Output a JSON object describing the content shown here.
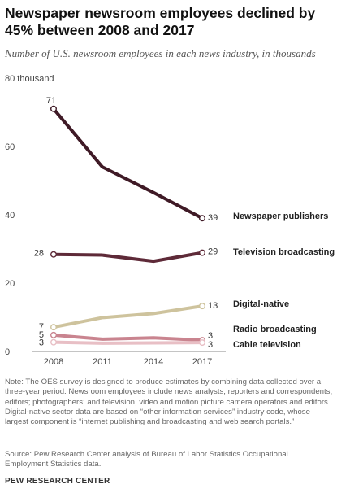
{
  "title": "Newspaper newsroom employees declined by 45% between 2008 and 2017",
  "subtitle": "Number of U.S. newsroom employees in each news industry, in thousands",
  "note": "Note: The OES survey is designed to produce estimates by combining data collected over a three-year period. Newsroom employees include news analysts, reporters and correspondents; editors; photographers; and television, video and motion picture camera operators and editors. Digital-native sector data are based on “other information services” industry code, whose largest component is “internet publishing and broadcasting and web search portals.”",
  "source": "Source: Pew Research Center analysis of Bureau of Labor Statistics Occupational Employment Statistics data.",
  "brand": "PEW RESEARCH CENTER",
  "chart_data": {
    "type": "line",
    "x": [
      "2008",
      "2011",
      "2014",
      "2017"
    ],
    "ylim": [
      0,
      80
    ],
    "yticks": [
      {
        "value": 0,
        "label": "0"
      },
      {
        "value": 20,
        "label": "20"
      },
      {
        "value": 40,
        "label": "40"
      },
      {
        "value": 60,
        "label": "60"
      },
      {
        "value": 80,
        "label": "80 thousand"
      }
    ],
    "grid": false,
    "series": [
      {
        "name": "Newspaper publishers",
        "color": "#3f1a26",
        "values": [
          71,
          54,
          46.5,
          39
        ],
        "start_label": "71",
        "end_label": "39"
      },
      {
        "name": "Television broadcasting",
        "color": "#5e2a38",
        "values": [
          28.4,
          28.2,
          26.4,
          28.9
        ],
        "start_label": "28",
        "end_label": "29"
      },
      {
        "name": "Digital-native",
        "color": "#cec39d",
        "values": [
          7.1,
          9.9,
          11.1,
          13.3
        ],
        "start_label": "7",
        "end_label": "13"
      },
      {
        "name": "Radio broadcasting",
        "color": "#c9848f",
        "values": [
          4.8,
          3.6,
          4.0,
          3.3
        ],
        "start_label": "5",
        "end_label": "3"
      },
      {
        "name": "Cable television",
        "color": "#e8bfc5",
        "values": [
          2.7,
          2.4,
          2.5,
          2.6
        ],
        "start_label": "3",
        "end_label": "3"
      }
    ]
  }
}
